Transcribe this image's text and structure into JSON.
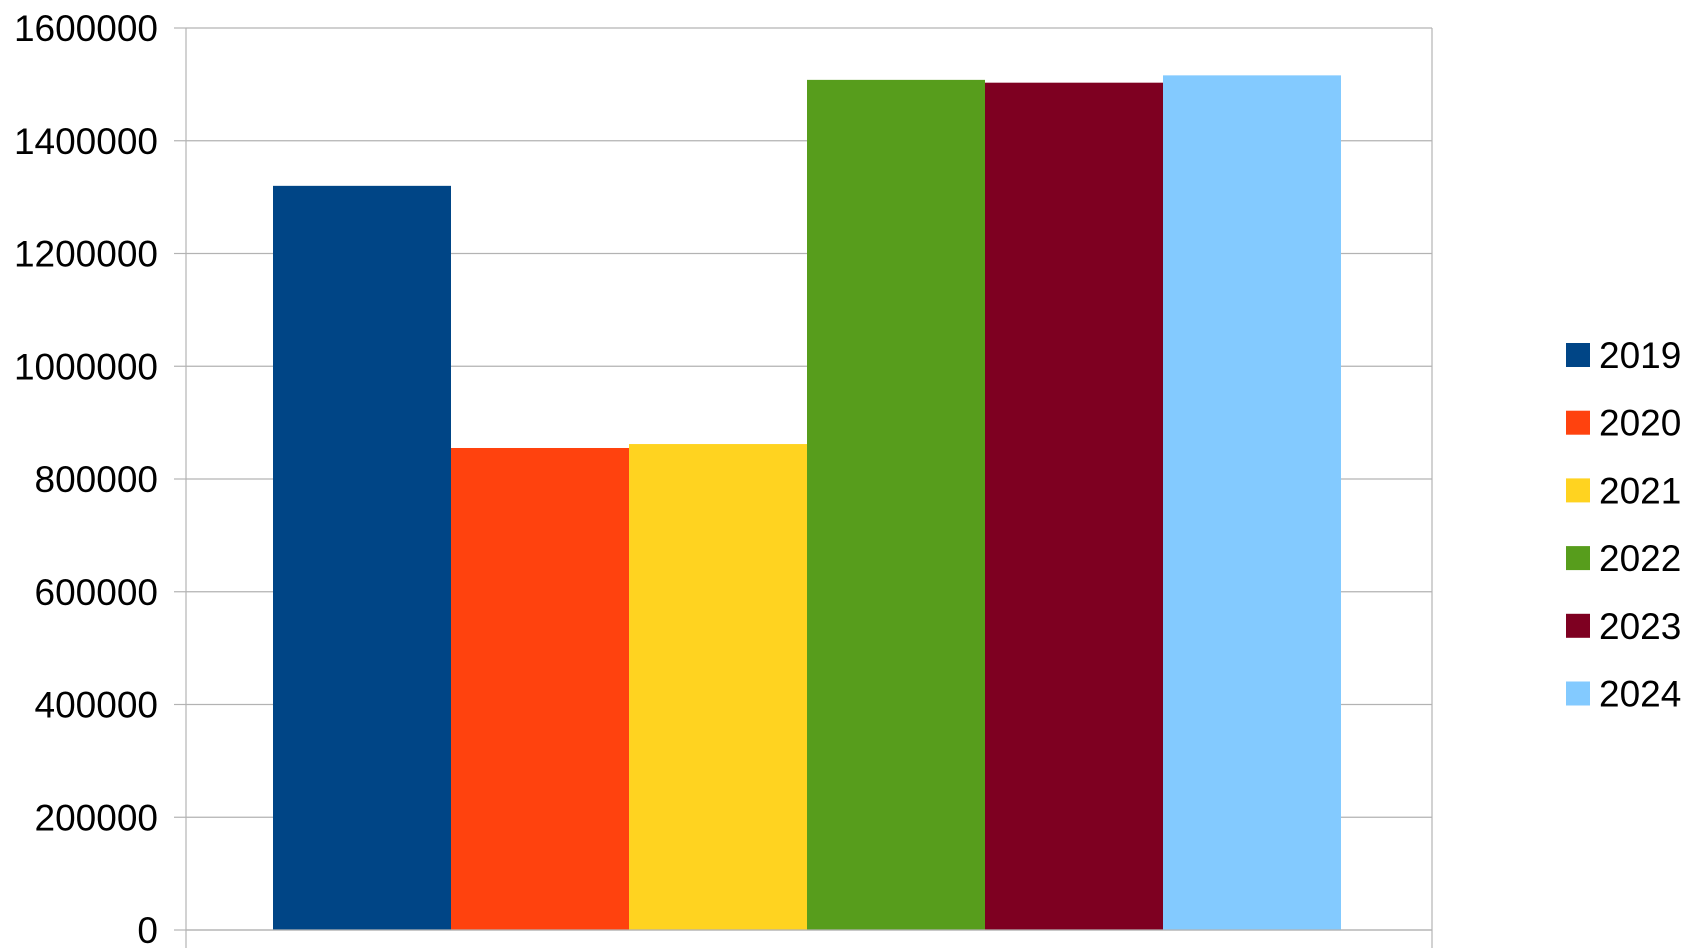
{
  "chart_data": {
    "type": "bar",
    "title": "",
    "xlabel": "",
    "ylabel": "",
    "ylim": [
      0,
      1600000
    ],
    "y_ticks": [
      "0",
      "200000",
      "400000",
      "600000",
      "800000",
      "1000000",
      "1200000",
      "1400000",
      "1600000"
    ],
    "grid": true,
    "legend_position": "right",
    "series": [
      {
        "name": "2019",
        "value": 1320000,
        "color": "#004586"
      },
      {
        "name": "2020",
        "value": 855000,
        "color": "#ff420e"
      },
      {
        "name": "2021",
        "value": 862000,
        "color": "#ffd320"
      },
      {
        "name": "2022",
        "value": 1508000,
        "color": "#579d1c"
      },
      {
        "name": "2023",
        "value": 1503000,
        "color": "#7e0021"
      },
      {
        "name": "2024",
        "value": 1516000,
        "color": "#83caff"
      }
    ]
  }
}
